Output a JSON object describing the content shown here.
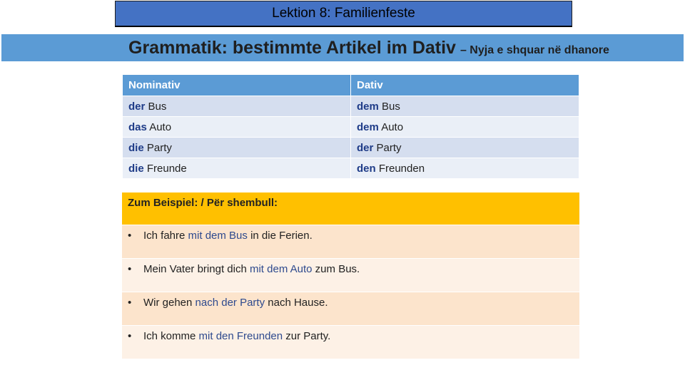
{
  "lesson_title": "Lektion 8: Familienfeste",
  "title": {
    "main": "Grammatik: bestimmte Artikel im Dativ",
    "sub": "– Nyja e shquar në dhanore"
  },
  "table": {
    "headers": [
      "Nominativ",
      "Dativ"
    ],
    "rows": [
      {
        "nom_article": "der",
        "nom_noun": "Bus",
        "dat_article": "dem",
        "dat_noun": "Bus"
      },
      {
        "nom_article": "das",
        "nom_noun": "Auto",
        "dat_article": "dem",
        "dat_noun": "Auto"
      },
      {
        "nom_article": "die",
        "nom_noun": "Party",
        "dat_article": "der",
        "dat_noun": "Party"
      },
      {
        "nom_article": "die",
        "nom_noun": "Freunde",
        "dat_article": "den",
        "dat_noun": "Freunden"
      }
    ]
  },
  "examples": {
    "heading": "Zum Beispiel: / Për shembull:",
    "bullet": "•",
    "items": [
      {
        "before": "Ich fahre ",
        "highlight": "mit dem Bus",
        "after": " in die Ferien."
      },
      {
        "before": "Mein Vater bringt dich ",
        "highlight": "mit dem Auto",
        "after": " zum Bus."
      },
      {
        "before": "Wir gehen ",
        "highlight": "nach der Party",
        "after": " nach Hause."
      },
      {
        "before": "Ich komme ",
        "highlight": "mit den Freunden",
        "after": " zur Party."
      }
    ]
  }
}
